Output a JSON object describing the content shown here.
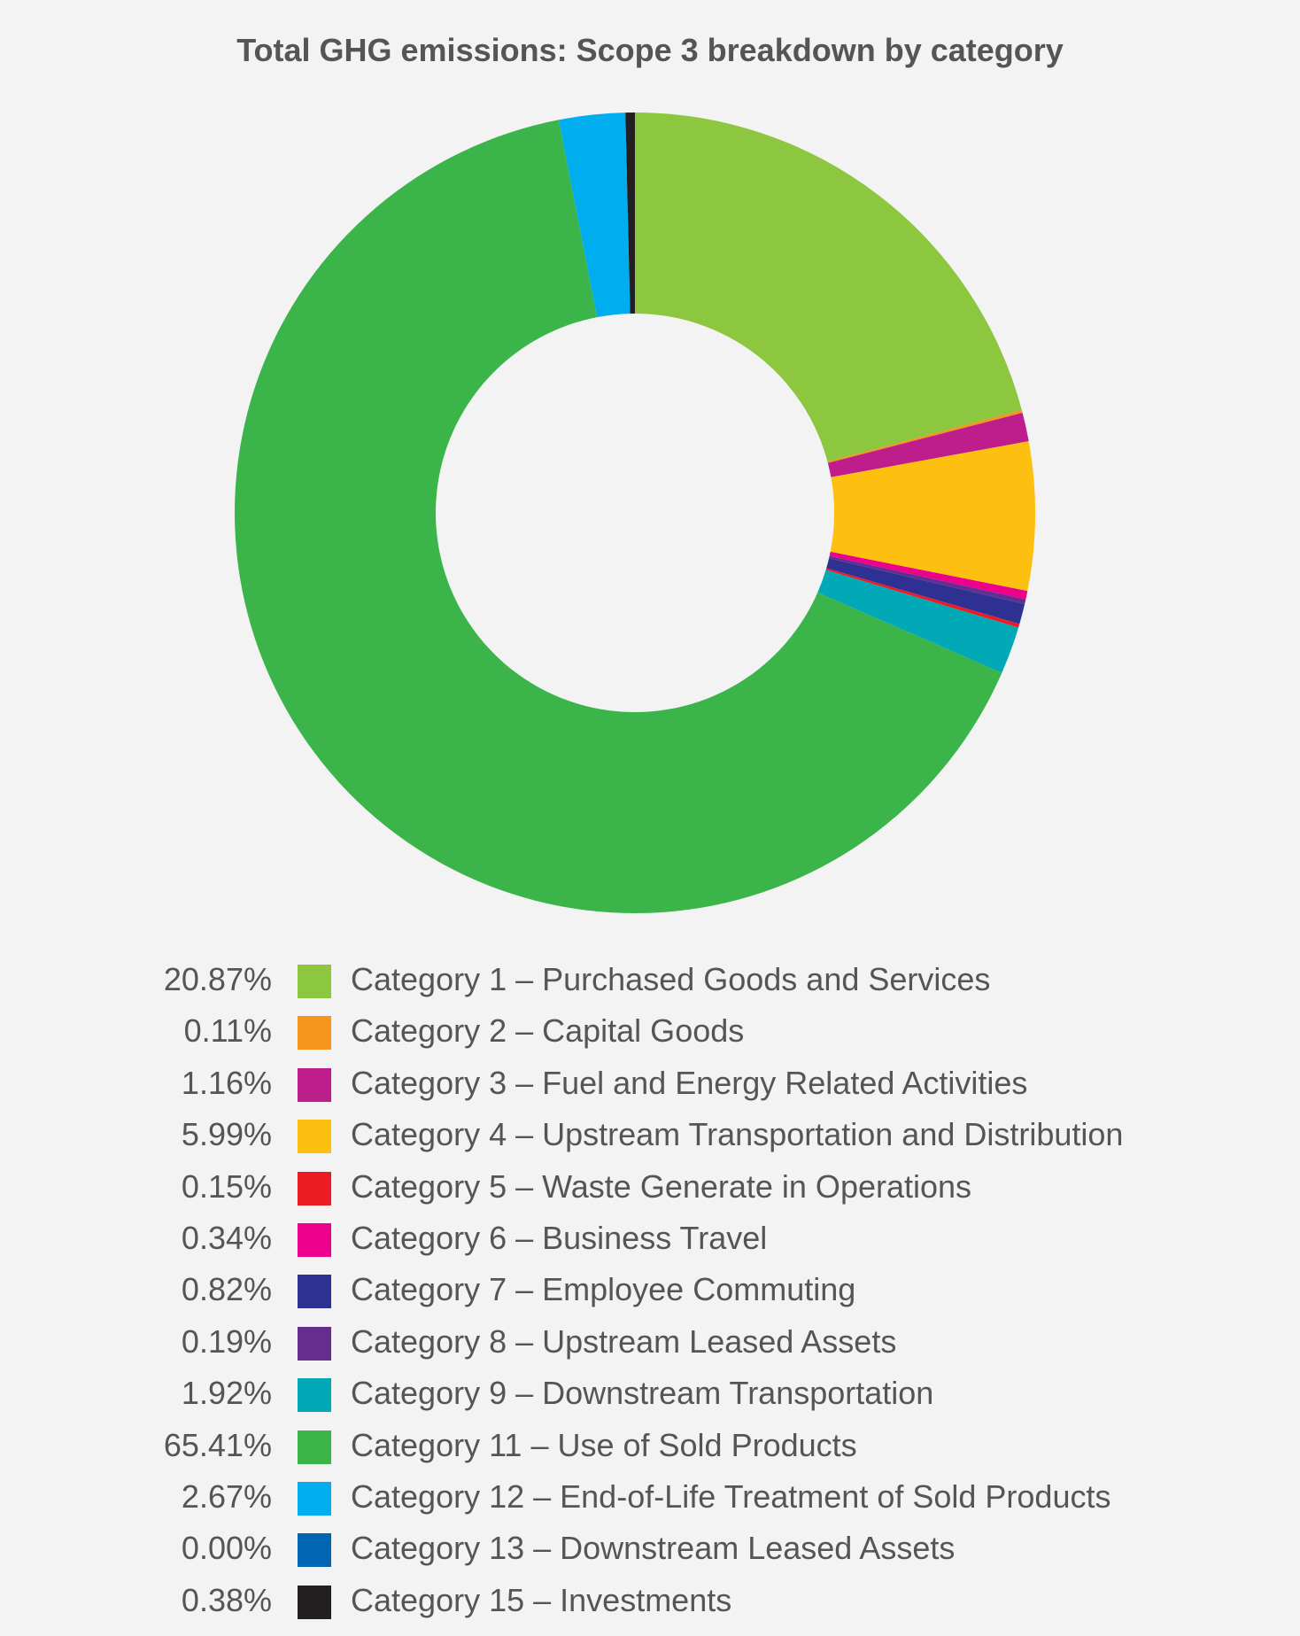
{
  "chart_data": {
    "type": "pie",
    "variant": "donut",
    "title": "Total GHG emissions: Scope 3 breakdown by category",
    "unit": "%",
    "categories": [
      "Category 1 – Purchased Goods and Services",
      "Category 2 – Capital Goods",
      "Category 3 – Fuel and Energy Related Activities",
      "Category 4 – Upstream Transportation and Distribution",
      "Category 5 – Waste Generate in Operations",
      "Category 6 – Business Travel",
      "Category 7 – Employee Commuting",
      "Category 8 – Upstream Leased Assets",
      "Category 9 – Downstream Transportation",
      "Category 11 – Use of Sold Products",
      "Category 12 – End-of-Life Treatment of Sold Products",
      "Category 13 – Downstream Leased Assets",
      "Category 15 – Investments"
    ],
    "values": [
      20.87,
      0.11,
      1.16,
      5.99,
      0.15,
      0.34,
      0.82,
      0.19,
      1.92,
      65.41,
      2.67,
      0.0,
      0.38
    ],
    "value_labels": [
      "20.87%",
      "0.11%",
      "1.16%",
      "5.99%",
      "0.15%",
      "0.34%",
      "0.82%",
      "0.19%",
      "1.92%",
      "65.41%",
      "2.67%",
      "0.00%",
      "0.38%"
    ],
    "colors": [
      "#8dc63f",
      "#f7941d",
      "#be1e8c",
      "#fdc010",
      "#ed1c24",
      "#ec008c",
      "#2e3192",
      "#662d91",
      "#00a9b5",
      "#3bb54a",
      "#00aeef",
      "#0066b3",
      "#231f20"
    ],
    "slice_order": [
      0,
      1,
      2,
      3,
      5,
      7,
      6,
      4,
      8,
      9,
      10,
      11,
      12
    ],
    "legend_position": "bottom"
  }
}
